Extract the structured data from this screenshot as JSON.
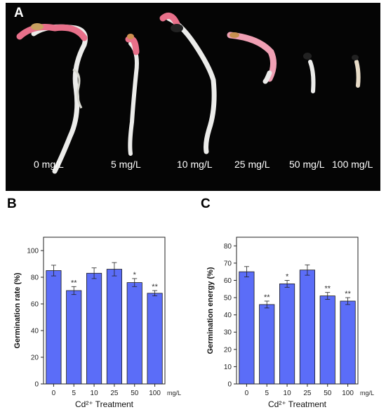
{
  "panel_a": {
    "letter": "A",
    "concentrations": [
      "0 mg/L",
      "5 mg/L",
      "10 mg/L",
      "25 mg/L",
      "50 mg/L",
      "100 mg/L"
    ]
  },
  "colors": {
    "bar": "#5b6df8",
    "bar_stroke": "#1a1a1a",
    "photo_bg": "#050505",
    "seedling_root": "#eeeeea",
    "seedling_hypocotyl": "#e8708a"
  },
  "chart_data": [
    {
      "panel_letter": "B",
      "type": "bar",
      "categories": [
        "0",
        "5",
        "10",
        "25",
        "50",
        "100"
      ],
      "category_unit": "mg/L",
      "values": [
        85,
        70,
        83,
        86,
        76,
        68
      ],
      "errors": [
        4,
        3,
        4,
        5,
        3,
        2
      ],
      "significance": [
        "",
        "**",
        "",
        "",
        "*",
        "**"
      ],
      "xlabel": "Cd²⁺ Treatment",
      "ylabel": "Germination rate (%)",
      "ylim": [
        0,
        110
      ],
      "yticks": [
        0,
        20,
        40,
        60,
        80,
        100
      ],
      "grid": false
    },
    {
      "panel_letter": "C",
      "type": "bar",
      "categories": [
        "0",
        "5",
        "10",
        "25",
        "50",
        "100"
      ],
      "category_unit": "mg/L",
      "values": [
        65,
        46,
        58,
        66,
        51,
        48
      ],
      "errors": [
        3,
        2,
        2,
        3,
        2,
        2
      ],
      "significance": [
        "",
        "**",
        "*",
        "",
        "**",
        "**"
      ],
      "xlabel": "Cd²⁺ Treatment",
      "ylabel": "Germination energy (%)",
      "ylim": [
        0,
        85
      ],
      "yticks": [
        0,
        10,
        20,
        30,
        40,
        50,
        60,
        70,
        80
      ],
      "grid": false
    }
  ]
}
